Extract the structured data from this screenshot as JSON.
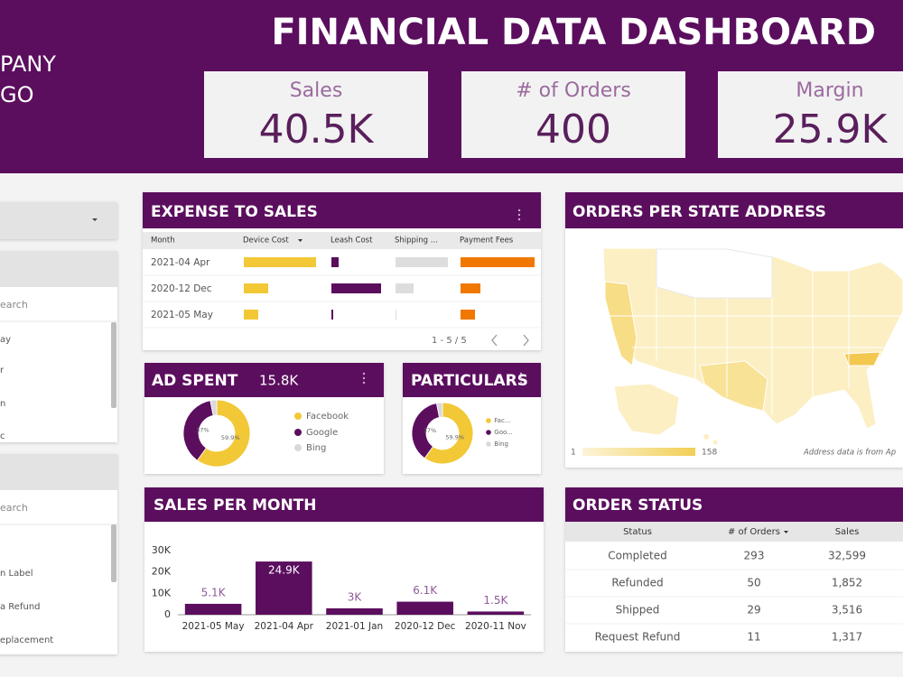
{
  "header": {
    "title": "FINANCIAL DATA DASHBOARD",
    "logo": [
      "PANY",
      "GO"
    ]
  },
  "kpis": [
    {
      "label": "Sales",
      "value": "40.5K"
    },
    {
      "label": "# of Orders",
      "value": "400"
    },
    {
      "label": "Margin",
      "value": "25.9K"
    }
  ],
  "sidebar": {
    "panels": [
      {
        "search": "earch",
        "items": [
          "ay",
          "r",
          "n",
          "c"
        ]
      },
      {
        "search": "earch",
        "items": [
          "n Label",
          "a Refund",
          "eplacement"
        ]
      }
    ]
  },
  "expense_to_sales": {
    "title": "EXPENSE TO SALES",
    "columns": [
      "Month",
      "Device Cost",
      "Leash Cost",
      "Shipping ...",
      "Payment Fees"
    ],
    "colors": [
      "#f2c836",
      "#5b0e5e",
      "#dddddd",
      "#f07800"
    ],
    "rows": [
      {
        "month": "2021-04 Apr",
        "values": [
          80,
          8,
          58,
          82
        ]
      },
      {
        "month": "2020-12 Dec",
        "values": [
          27,
          55,
          20,
          22
        ]
      },
      {
        "month": "2021-05 May",
        "values": [
          16,
          2,
          1,
          16
        ]
      }
    ],
    "pagination": "1 - 5 / 5"
  },
  "chart_data": [
    {
      "type": "bar",
      "title": "SALES PER MONTH",
      "categories": [
        "2021-05 May",
        "2021-04 Apr",
        "2021-01 Jan",
        "2020-12 Dec",
        "2020-11 Nov"
      ],
      "values": [
        5100,
        24900,
        3000,
        6100,
        1500
      ],
      "value_labels": [
        "5.1K",
        "24.9K",
        "3K",
        "6.1K",
        "1.5K"
      ],
      "color": "#5b0e5e",
      "ylim": [
        0,
        30000
      ],
      "yticks": [
        0,
        {
          "value": 10000,
          "label": "10K"
        },
        {
          "value": 20000,
          "label": "20K"
        },
        {
          "value": 30000,
          "label": "30K"
        }
      ]
    },
    {
      "type": "pie",
      "title": "AD SPENT",
      "total": "15.8K",
      "categories": [
        "Facebook",
        "Google",
        "Bing"
      ],
      "values": [
        59.9,
        37,
        3.1
      ],
      "value_labels": [
        "59.9%",
        "37%",
        null
      ],
      "colors": [
        "#f2c836",
        "#5b0e5e",
        "#d9d9d9"
      ]
    },
    {
      "type": "pie",
      "title": "PARTICULARS",
      "categories": [
        "Fac...",
        "Goo...",
        "Bing"
      ],
      "values": [
        59.9,
        37,
        3.1
      ],
      "value_labels": [
        "59.9%",
        "37%",
        null
      ],
      "colors": [
        "#f2c836",
        "#5b0e5e",
        "#d9d9d9"
      ]
    }
  ],
  "map": {
    "title": "ORDERS PER STATE ADDRESS",
    "legend_min": 1,
    "legend_max": 158,
    "note": "Address data is from Ap"
  },
  "order_status": {
    "title": "ORDER STATUS",
    "columns": [
      "Status",
      "# of Orders",
      "Sales"
    ],
    "rows": [
      [
        "Completed",
        "293",
        "32,599"
      ],
      [
        "Refunded",
        "50",
        "1,852"
      ],
      [
        "Shipped",
        "29",
        "3,516"
      ],
      [
        "Request Refund",
        "11",
        "1,317"
      ]
    ]
  }
}
